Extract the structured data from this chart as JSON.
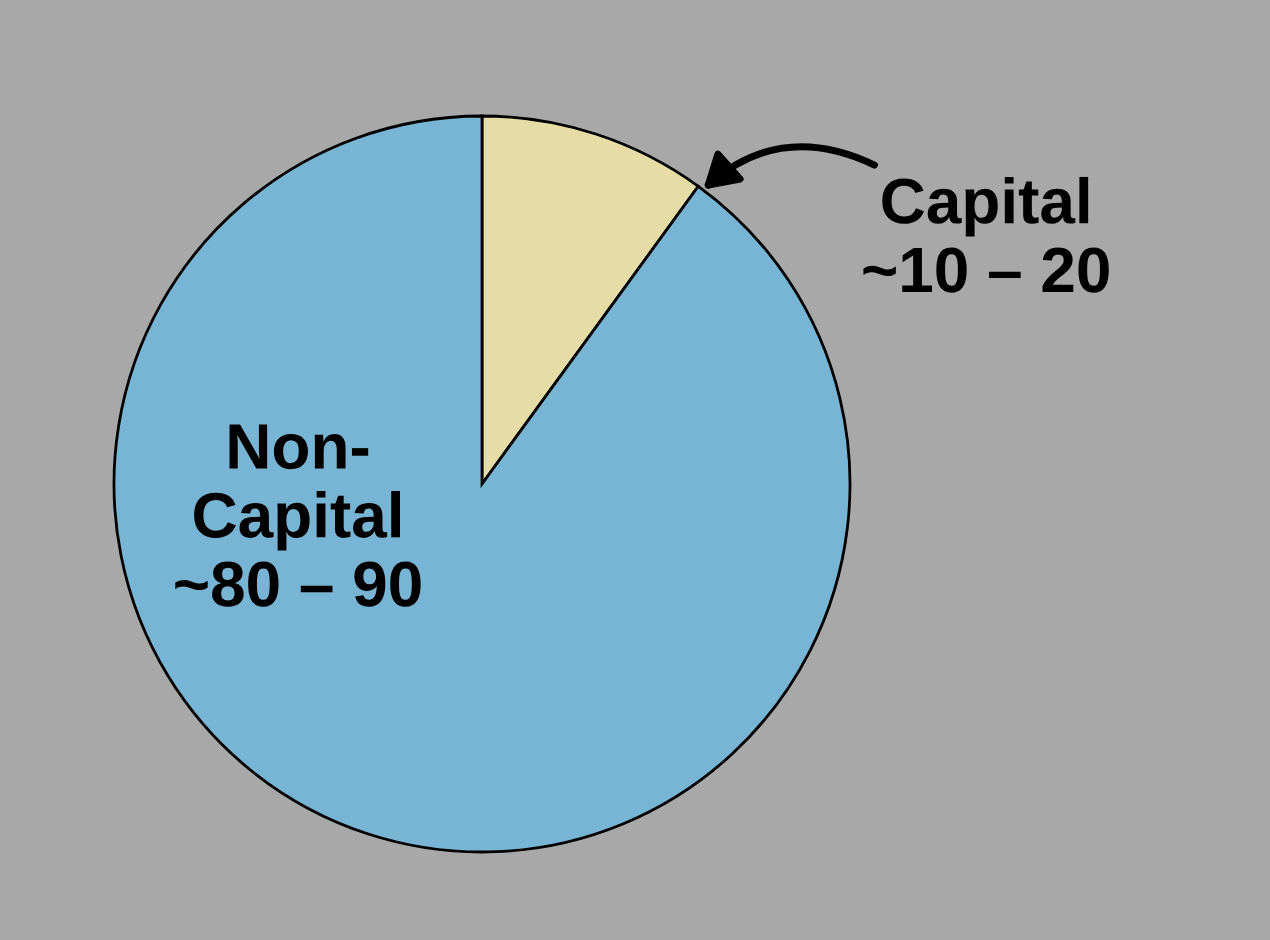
{
  "chart_data": {
    "type": "pie",
    "categories": [
      "Capital",
      "Non-Capital"
    ],
    "values": [
      10,
      90
    ],
    "value_labels": [
      "~10 – 20",
      "~80 – 90"
    ],
    "colors": [
      "#e6dca6",
      "#78b4d4"
    ],
    "legend": false
  }
}
